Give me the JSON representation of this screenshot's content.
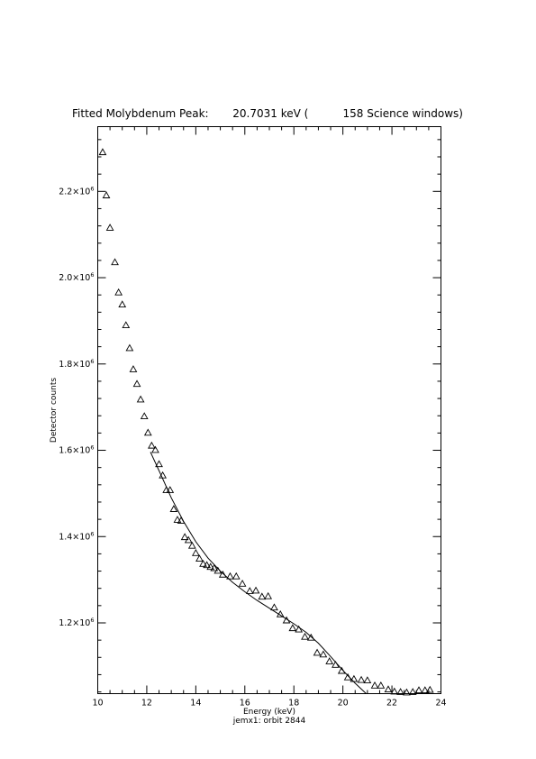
{
  "chart_data": {
    "type": "scatter",
    "title": "Fitted Molybdenum Peak:       20.7031 keV (          158 Science windows)",
    "xlabel": "Energy (keV)",
    "ylabel": "Detector counts",
    "subtitle": "jemx1: orbit 2844",
    "xlim": [
      10,
      24
    ],
    "ylim": [
      1036000,
      2350000
    ],
    "x_ticks": [
      10,
      12,
      14,
      16,
      18,
      20,
      22,
      24
    ],
    "y_ticks": [
      {
        "value": 1200000,
        "mantissa": "1.2",
        "exp": "6"
      },
      {
        "value": 1400000,
        "mantissa": "1.4",
        "exp": "6"
      },
      {
        "value": 1600000,
        "mantissa": "1.6",
        "exp": "6"
      },
      {
        "value": 1800000,
        "mantissa": "1.8",
        "exp": "6"
      },
      {
        "value": 2000000,
        "mantissa": "2.0",
        "exp": "6"
      },
      {
        "value": 2200000,
        "mantissa": "2.2",
        "exp": "6"
      }
    ],
    "grid": false,
    "series": [
      {
        "marker": "triangle",
        "x": [
          10.2,
          10.35,
          10.5,
          10.7,
          10.85,
          11.0,
          11.15,
          11.3,
          11.45,
          11.6,
          11.75,
          11.9,
          12.05,
          12.2,
          12.35,
          12.5,
          12.65,
          12.8,
          12.95,
          13.1,
          13.25,
          13.4,
          13.55,
          13.7,
          13.85,
          14.0,
          14.15,
          14.3,
          14.45,
          14.6,
          14.75,
          14.9,
          15.1,
          15.4,
          15.65,
          15.9,
          16.2,
          16.45,
          16.7,
          16.95,
          17.2,
          17.45,
          17.7,
          17.95,
          18.2,
          18.45,
          18.7,
          18.95,
          19.2,
          19.45,
          19.7,
          19.95,
          20.2,
          20.45,
          20.75,
          21.0,
          21.3,
          21.55,
          21.85,
          22.1,
          22.35,
          22.6,
          22.85,
          23.1,
          23.35,
          23.55
        ],
        "y": [
          2290000,
          2190000,
          2115000,
          2035000,
          1965000,
          1937000,
          1889000,
          1836000,
          1787000,
          1753000,
          1717000,
          1678000,
          1640000,
          1610000,
          1600000,
          1567000,
          1541000,
          1507000,
          1507000,
          1463000,
          1438000,
          1436000,
          1398000,
          1391000,
          1378000,
          1361000,
          1348000,
          1336000,
          1333000,
          1329000,
          1326000,
          1320000,
          1311000,
          1307000,
          1307000,
          1290000,
          1273000,
          1274000,
          1260000,
          1261000,
          1235000,
          1219000,
          1205000,
          1187000,
          1184000,
          1167000,
          1165000,
          1130000,
          1126000,
          1110000,
          1102000,
          1088000,
          1073000,
          1069000,
          1067000,
          1066000,
          1054000,
          1054000,
          1045000,
          1040000,
          1039000,
          1038000,
          1039000,
          1043000,
          1043000,
          1044000
        ]
      },
      {
        "marker": "line",
        "x": [
          12.15,
          12.6,
          13.0,
          13.5,
          14.0,
          14.5,
          15.0,
          15.5,
          16.0,
          16.5,
          17.0,
          17.5,
          18.0,
          18.5,
          19.0,
          19.5,
          20.0,
          20.5,
          20.95
        ],
        "y": [
          1596000,
          1540000,
          1490000,
          1435000,
          1388000,
          1350000,
          1320000,
          1294000,
          1272000,
          1252000,
          1234000,
          1216000,
          1198000,
          1178000,
          1153000,
          1122000,
          1090000,
          1060000,
          1036000
        ]
      }
    ]
  }
}
